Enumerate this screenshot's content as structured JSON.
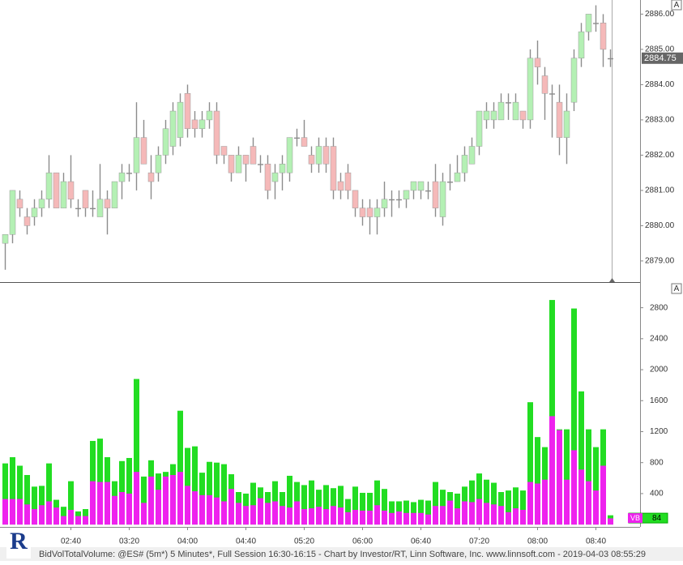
{
  "chart_data": [
    {
      "type": "candlestick",
      "panel_button": "A",
      "last_price": 2884.75,
      "up_color": "#b4f0b4",
      "down_color": "#f5b9b9",
      "wick_color": "#8c8c8c",
      "ylim": [
        2878.4,
        2886.4
      ],
      "yticks": [
        {
          "value": 2879,
          "label": "2879.00"
        },
        {
          "value": 2880,
          "label": "2880.00"
        },
        {
          "value": 2881,
          "label": "2881.00"
        },
        {
          "value": 2882,
          "label": "2882.00"
        },
        {
          "value": 2883,
          "label": "2883.00"
        },
        {
          "value": 2884,
          "label": "2884.00"
        },
        {
          "value": 2885,
          "label": "2885.00"
        },
        {
          "value": 2886,
          "label": "2886.00"
        }
      ],
      "open": [
        2879.5,
        2879.75,
        2880.75,
        2880.25,
        2880.25,
        2880.5,
        2880.75,
        2881.5,
        2880.5,
        2881.25,
        2880.5,
        2881.0,
        2880.5,
        2880.25,
        2880.75,
        2880.5,
        2881.25,
        2881.5,
        2881.5,
        2882.5,
        2881.5,
        2881.5,
        2882.0,
        2882.25,
        2882.5,
        2883.75,
        2883.0,
        2882.75,
        2883.0,
        2883.25,
        2882.25,
        2882.0,
        2881.5,
        2882.0,
        2882.25,
        2881.75,
        2881.75,
        2881.25,
        2881.5,
        2881.5,
        2882.5,
        2882.5,
        2882.0,
        2881.75,
        2882.25,
        2882.25,
        2881.25,
        2881.5,
        2881.0,
        2880.5,
        2880.5,
        2880.25,
        2880.5,
        2880.75,
        2880.75,
        2880.75,
        2881.0,
        2881.0,
        2881.0,
        2881.25,
        2880.25,
        2881.25,
        2881.25,
        2881.5,
        2881.75,
        2882.25,
        2883.0,
        2883.0,
        2883.0,
        2883.5,
        2883.0,
        2883.25,
        2883.0,
        2884.75,
        2884.25,
        2883.75,
        2883.5,
        2882.5,
        2883.5,
        2884.75,
        2885.5,
        2885.75,
        2885.75,
        2884.75
      ],
      "high": [
        2879.75,
        2881.0,
        2881.0,
        2880.5,
        2880.75,
        2881.0,
        2882.0,
        2881.5,
        2881.5,
        2882.0,
        2880.75,
        2881.0,
        2881.0,
        2881.75,
        2881.0,
        2881.25,
        2881.75,
        2881.75,
        2883.5,
        2883.0,
        2882.0,
        2882.25,
        2883.0,
        2883.5,
        2883.75,
        2884.0,
        2883.25,
        2883.25,
        2883.5,
        2883.5,
        2882.25,
        2882.0,
        2882.25,
        2882.0,
        2882.5,
        2882.0,
        2882.0,
        2881.75,
        2882.0,
        2882.5,
        2882.75,
        2883.0,
        2882.25,
        2882.5,
        2882.5,
        2882.5,
        2881.5,
        2881.75,
        2881.0,
        2880.75,
        2880.75,
        2880.75,
        2881.25,
        2881.0,
        2881.0,
        2881.0,
        2881.25,
        2881.25,
        2881.25,
        2881.75,
        2881.5,
        2881.75,
        2882.0,
        2882.25,
        2882.5,
        2883.25,
        2883.5,
        2883.5,
        2883.75,
        2883.75,
        2883.75,
        2883.25,
        2885.0,
        2885.25,
        2884.5,
        2884.0,
        2884.0,
        2883.75,
        2885.0,
        2885.75,
        2886.0,
        2886.25,
        2886.0,
        2885.0
      ],
      "low": [
        2878.75,
        2879.5,
        2880.25,
        2879.75,
        2880.0,
        2880.25,
        2880.5,
        2880.5,
        2880.5,
        2880.5,
        2880.25,
        2880.25,
        2880.25,
        2880.25,
        2879.75,
        2880.5,
        2880.75,
        2881.25,
        2881.0,
        2881.75,
        2880.75,
        2881.25,
        2881.75,
        2882.0,
        2882.25,
        2882.5,
        2882.5,
        2882.5,
        2882.75,
        2881.75,
        2881.75,
        2881.25,
        2881.5,
        2881.25,
        2881.75,
        2881.5,
        2880.75,
        2880.75,
        2881.0,
        2881.25,
        2882.25,
        2882.25,
        2881.5,
        2881.5,
        2881.5,
        2880.75,
        2880.75,
        2880.75,
        2880.25,
        2880.0,
        2879.75,
        2879.75,
        2880.25,
        2880.25,
        2880.5,
        2880.5,
        2880.75,
        2880.75,
        2880.75,
        2880.25,
        2880.0,
        2881.0,
        2881.25,
        2881.25,
        2881.75,
        2882.0,
        2882.75,
        2882.75,
        2883.0,
        2883.0,
        2883.0,
        2882.75,
        2882.75,
        2884.0,
        2883.0,
        2882.5,
        2882.0,
        2881.75,
        2883.25,
        2884.5,
        2885.25,
        2885.5,
        2884.5,
        2884.5
      ],
      "close": [
        2879.75,
        2881.0,
        2880.5,
        2880.0,
        2880.5,
        2880.75,
        2881.5,
        2880.5,
        2881.25,
        2880.75,
        2880.5,
        2880.5,
        2880.5,
        2880.75,
        2880.5,
        2881.25,
        2881.5,
        2881.5,
        2882.5,
        2881.75,
        2881.25,
        2882.0,
        2882.75,
        2883.25,
        2883.5,
        2882.75,
        2882.75,
        2883.0,
        2883.25,
        2882.0,
        2882.0,
        2881.5,
        2882.0,
        2881.75,
        2881.75,
        2881.75,
        2881.0,
        2881.5,
        2881.75,
        2882.5,
        2882.5,
        2882.25,
        2881.75,
        2882.25,
        2881.75,
        2881.0,
        2881.0,
        2881.0,
        2880.5,
        2880.25,
        2880.25,
        2880.5,
        2880.75,
        2880.75,
        2880.75,
        2881.0,
        2881.25,
        2881.25,
        2881.0,
        2880.5,
        2881.25,
        2881.25,
        2881.5,
        2882.0,
        2882.25,
        2883.25,
        2883.25,
        2883.25,
        2883.5,
        2883.5,
        2883.5,
        2883.0,
        2884.75,
        2884.5,
        2883.75,
        2883.75,
        2882.5,
        2883.25,
        2884.75,
        2885.5,
        2886.0,
        2885.75,
        2885.0,
        2884.75
      ]
    },
    {
      "type": "bar",
      "panel_button": "A",
      "current_label": "VB",
      "current_value": 84,
      "current_color": "#22dd22",
      "ylim": [
        -30,
        3110
      ],
      "yticks": [
        400,
        800,
        1200,
        1600,
        2000,
        2400,
        2800
      ],
      "categories": [
        null,
        null,
        null,
        null,
        null,
        null,
        null,
        null,
        null,
        "02:40",
        null,
        null,
        null,
        null,
        null,
        null,
        null,
        "03:20",
        null,
        null,
        null,
        null,
        null,
        null,
        null,
        "04:00",
        null,
        null,
        null,
        null,
        null,
        null,
        null,
        "04:40",
        null,
        null,
        null,
        null,
        null,
        null,
        null,
        "05:20",
        null,
        null,
        null,
        null,
        null,
        null,
        null,
        "06:00",
        null,
        null,
        null,
        null,
        null,
        null,
        null,
        "06:40",
        null,
        null,
        null,
        null,
        null,
        null,
        null,
        "07:20",
        null,
        null,
        null,
        null,
        null,
        null,
        null,
        "08:00",
        null,
        null,
        null,
        null,
        null,
        null,
        null,
        "08:40",
        null,
        null
      ],
      "series": [
        {
          "name": "TotalVolume",
          "color": "#22dd22",
          "values": [
            790,
            870,
            760,
            640,
            490,
            500,
            790,
            320,
            230,
            560,
            170,
            200,
            1080,
            1110,
            870,
            560,
            820,
            860,
            1880,
            620,
            830,
            660,
            680,
            780,
            1470,
            990,
            1010,
            670,
            810,
            800,
            780,
            650,
            420,
            400,
            540,
            480,
            420,
            560,
            420,
            630,
            550,
            510,
            570,
            450,
            510,
            470,
            500,
            330,
            490,
            410,
            410,
            570,
            460,
            300,
            300,
            310,
            290,
            320,
            310,
            550,
            450,
            420,
            400,
            490,
            570,
            660,
            580,
            540,
            420,
            440,
            480,
            440,
            1580,
            1130,
            1000,
            2900,
            1230,
            1230,
            2790,
            1720,
            1230,
            1000,
            1230,
            120
          ]
        },
        {
          "name": "BidVol",
          "color": "#ee22ee",
          "values": [
            330,
            330,
            330,
            260,
            200,
            250,
            300,
            220,
            110,
            190,
            110,
            110,
            560,
            550,
            550,
            370,
            420,
            400,
            680,
            280,
            620,
            450,
            620,
            640,
            680,
            500,
            430,
            380,
            380,
            350,
            300,
            460,
            280,
            240,
            250,
            340,
            280,
            300,
            240,
            220,
            300,
            200,
            210,
            230,
            200,
            240,
            220,
            160,
            190,
            180,
            180,
            250,
            180,
            150,
            170,
            150,
            150,
            150,
            130,
            240,
            240,
            310,
            210,
            300,
            290,
            330,
            280,
            260,
            240,
            160,
            210,
            190,
            550,
            530,
            580,
            1400,
            1220,
            580,
            960,
            710,
            560,
            440,
            760,
            80
          ]
        }
      ]
    }
  ],
  "logo": "R",
  "status_bar": "BidVolTotalVolume: @ES# (5m*) 5 Minutes*, Full Session 16:30-16:15 - Chart by Investor/RT, Linn Software, Inc. www.linnsoft.com - 2019-04-03 08:55:29"
}
